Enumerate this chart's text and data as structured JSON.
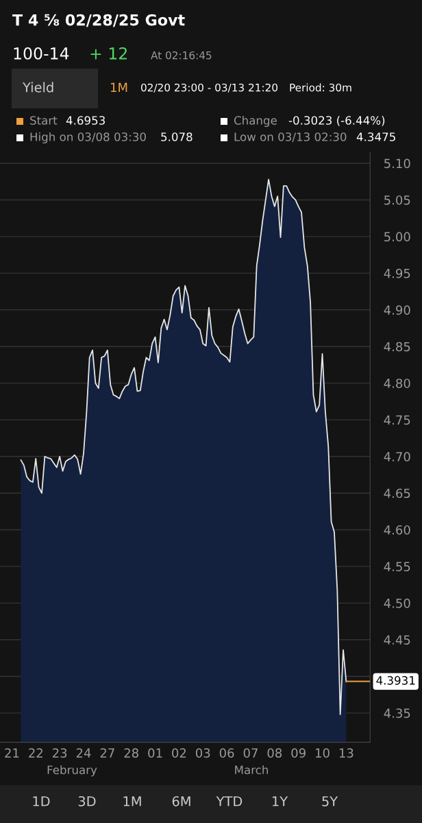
{
  "chart_data": {
    "type": "area",
    "title": "T 4 ⅝ 02/28/25 Govt",
    "annotations": [
      "100-14",
      "+ 12",
      "At 02:16:45",
      "Yield",
      "1M",
      "02/20 23:00 - 03/13 21:20",
      "Period: 30m",
      "Start",
      "4.6953",
      "Change",
      "-0.3023 (-6.44%)",
      "High on 03/08 03:30",
      "5.078",
      "Low on 03/13 02:30",
      "4.3475",
      "1D",
      "3D",
      "1M",
      "6M",
      "YTD",
      "1Y",
      "5Y",
      "February",
      "March"
    ],
    "categories": [
      "21",
      null,
      null,
      null,
      null,
      null,
      null,
      null,
      "22",
      null,
      null,
      null,
      null,
      null,
      null,
      null,
      "23",
      null,
      null,
      null,
      null,
      null,
      null,
      null,
      "24",
      null,
      null,
      null,
      null,
      null,
      null,
      null,
      "27",
      null,
      null,
      null,
      null,
      null,
      null,
      null,
      "28",
      null,
      null,
      null,
      null,
      null,
      null,
      null,
      "01",
      null,
      null,
      null,
      null,
      null,
      null,
      null,
      "02",
      null,
      null,
      null,
      null,
      null,
      null,
      null,
      "03",
      null,
      null,
      null,
      null,
      null,
      null,
      null,
      "06",
      null,
      null,
      null,
      null,
      null,
      null,
      null,
      "07",
      null,
      null,
      null,
      null,
      null,
      null,
      null,
      "08",
      null,
      null,
      null,
      null,
      null,
      null,
      null,
      "09",
      null,
      null,
      null,
      null,
      null,
      null,
      null,
      "10",
      null,
      null,
      null,
      null,
      null,
      null,
      null,
      "13"
    ],
    "ylim": [
      4.31,
      5.115
    ],
    "yticks": [
      {
        "value": 4.35,
        "label": "4.35"
      },
      {
        "value": 4.4,
        "label": null
      },
      {
        "value": 4.45,
        "label": "4.45"
      },
      {
        "value": 4.5,
        "label": "4.50"
      },
      {
        "value": 4.55,
        "label": "4.55"
      },
      {
        "value": 4.6,
        "label": "4.60"
      },
      {
        "value": 4.65,
        "label": "4.65"
      },
      {
        "value": 4.7,
        "label": "4.70"
      },
      {
        "value": 4.75,
        "label": "4.75"
      },
      {
        "value": 4.8,
        "label": "4.80"
      },
      {
        "value": 4.85,
        "label": "4.85"
      },
      {
        "value": 4.9,
        "label": "4.90"
      },
      {
        "value": 4.95,
        "label": "4.95"
      },
      {
        "value": 5.0,
        "label": "5.00"
      },
      {
        "value": 5.05,
        "label": "5.05"
      },
      {
        "value": 5.1,
        "label": "5.10"
      }
    ],
    "grid": "y",
    "ref_lines": [
      {
        "axis": "y",
        "value": 4.3931,
        "label": "4.3931",
        "color": "#f0a040"
      }
    ],
    "series": [
      {
        "color": "#e6e6e6",
        "values": [
          null,
          null,
          null,
          4.695,
          4.688,
          4.672,
          4.667,
          4.665,
          4.697,
          4.658,
          4.65,
          4.7,
          4.698,
          4.697,
          4.691,
          4.685,
          4.7,
          4.68,
          4.693,
          4.696,
          4.698,
          4.702,
          4.696,
          4.676,
          4.704,
          4.76,
          4.835,
          4.845,
          4.8,
          4.793,
          4.835,
          4.837,
          4.845,
          4.798,
          4.784,
          4.782,
          4.779,
          4.789,
          4.796,
          4.798,
          4.812,
          4.821,
          4.789,
          4.79,
          4.816,
          4.835,
          4.831,
          4.854,
          4.863,
          4.828,
          4.875,
          4.887,
          4.873,
          4.893,
          4.919,
          4.927,
          4.931,
          4.896,
          4.933,
          4.919,
          4.889,
          4.886,
          4.878,
          4.873,
          4.854,
          4.851,
          4.903,
          4.865,
          4.854,
          4.849,
          4.841,
          4.838,
          4.835,
          4.829,
          4.877,
          4.891,
          4.901,
          4.885,
          4.868,
          4.854,
          4.859,
          4.863,
          4.96,
          4.989,
          5.022,
          5.05,
          5.078,
          5.055,
          5.041,
          5.055,
          4.999,
          5.069,
          5.069,
          5.06,
          5.054,
          5.05,
          5.041,
          5.033,
          4.985,
          4.96,
          4.91,
          4.784,
          4.761,
          4.77,
          4.84,
          4.761,
          4.714,
          4.611,
          4.597,
          4.518,
          4.348,
          4.436,
          4.393
        ]
      }
    ]
  }
}
